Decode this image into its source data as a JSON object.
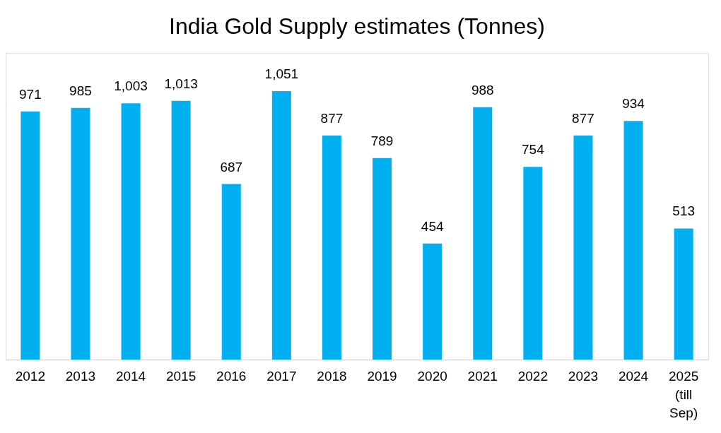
{
  "chart_data": {
    "type": "bar",
    "title": "India Gold Supply estimates (Tonnes)",
    "categories": [
      "2012",
      "2013",
      "2014",
      "2015",
      "2016",
      "2017",
      "2018",
      "2019",
      "2020",
      "2021",
      "2022",
      "2023",
      "2024",
      "2025 (till Sep)"
    ],
    "values": [
      971,
      985,
      1003,
      1013,
      687,
      1051,
      877,
      789,
      454,
      988,
      754,
      877,
      934,
      513
    ],
    "value_labels": [
      "971",
      "985",
      "1,003",
      "1,013",
      "687",
      "1,051",
      "877",
      "789",
      "454",
      "988",
      "754",
      "877",
      "934",
      "513"
    ],
    "color": "#00b0f0",
    "grid": false,
    "tick_labels": "x"
  }
}
